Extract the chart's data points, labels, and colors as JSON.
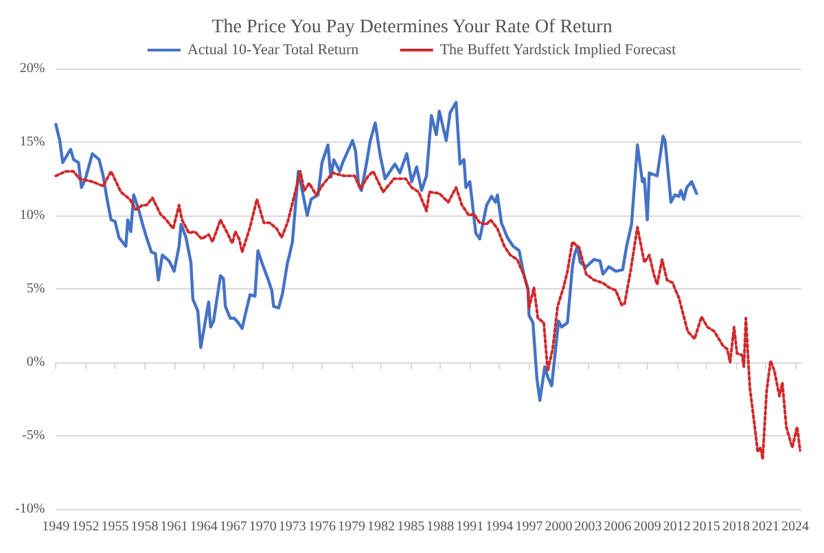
{
  "chart_data": {
    "type": "line",
    "title": "The Price You Pay Determines Your Rate Of Return",
    "series": [
      {
        "name": "Actual 10-Year Total Return",
        "color": "#4472c4",
        "line_style": "solid",
        "x": [
          1949.0,
          1949.4,
          1949.7,
          1950.5,
          1950.8,
          1951.3,
          1951.6,
          1952.0,
          1952.7,
          1953.4,
          1953.8,
          1954.2,
          1954.6,
          1955.0,
          1955.4,
          1956.1,
          1956.3,
          1956.6,
          1956.9,
          1957.4,
          1957.8,
          1958.2,
          1958.7,
          1959.1,
          1959.4,
          1959.8,
          1960.5,
          1961.0,
          1961.5,
          1961.7,
          1962.2,
          1962.7,
          1962.9,
          1963.4,
          1963.7,
          1964.5,
          1964.7,
          1965.0,
          1965.7,
          1966.0,
          1966.2,
          1966.7,
          1967.1,
          1967.5,
          1967.9,
          1968.2,
          1968.7,
          1969.2,
          1969.5,
          1970.0,
          1970.5,
          1970.9,
          1971.1,
          1971.6,
          1972.0,
          1972.5,
          1972.7,
          1973.0,
          1973.6,
          1974.5,
          1974.9,
          1975.6,
          1976.0,
          1976.6,
          1976.9,
          1977.2,
          1977.8,
          1978.1,
          1978.7,
          1979.1,
          1979.4,
          1979.7,
          1980.0,
          1980.5,
          1980.9,
          1981.4,
          1981.9,
          1982.4,
          1982.9,
          1983.4,
          1983.9,
          1984.6,
          1985.1,
          1985.6,
          1986.1,
          1986.6,
          1987.1,
          1987.6,
          1987.9,
          1988.6,
          1989.0,
          1989.6,
          1990.0,
          1990.4,
          1990.6,
          1991.0,
          1991.6,
          1992.0,
          1992.7,
          1993.2,
          1993.6,
          1993.8,
          1994.2,
          1994.8,
          1995.4,
          1996.0,
          1996.5,
          1996.9,
          1997.0,
          1997.4,
          1997.8,
          1998.1,
          1998.6,
          1998.9,
          1999.3,
          2000.0,
          2000.3,
          2000.9,
          2001.4,
          2001.6,
          2001.9,
          2002.2,
          2002.8,
          2003.6,
          2004.2,
          2004.5,
          2005.1,
          2005.8,
          2006.5,
          2006.9,
          2007.4,
          2008.0,
          2008.5,
          2008.7,
          2009.0,
          2009.2,
          2010.0,
          2010.6,
          2010.8,
          2011.4,
          2011.8,
          2012.2,
          2012.4,
          2012.7,
          2013.0,
          2013.5,
          2014.0
        ],
        "values": [
          16.2,
          15.1,
          13.6,
          14.5,
          13.8,
          13.6,
          11.9,
          12.5,
          14.2,
          13.8,
          12.7,
          11.1,
          9.7,
          9.6,
          8.5,
          7.9,
          9.7,
          8.9,
          11.4,
          10.4,
          9.4,
          8.5,
          7.5,
          7.4,
          5.6,
          7.3,
          6.9,
          6.2,
          7.9,
          9.4,
          8.5,
          6.8,
          4.3,
          3.5,
          1.0,
          4.1,
          2.4,
          2.8,
          5.9,
          5.7,
          3.8,
          3.0,
          3.0,
          2.7,
          2.3,
          3.2,
          4.6,
          4.5,
          7.6,
          6.6,
          5.7,
          4.9,
          3.8,
          3.7,
          4.7,
          6.8,
          7.3,
          8.2,
          13.0,
          10.0,
          11.1,
          11.4,
          13.6,
          14.8,
          12.6,
          13.8,
          13.0,
          13.6,
          14.5,
          15.1,
          14.4,
          12.2,
          11.7,
          13.5,
          15.1,
          16.3,
          14.1,
          12.5,
          13.0,
          13.5,
          12.9,
          14.2,
          12.3,
          13.3,
          11.7,
          12.7,
          16.8,
          15.5,
          17.1,
          15.1,
          17.0,
          17.7,
          13.5,
          13.8,
          11.9,
          12.3,
          8.8,
          8.4,
          10.7,
          11.3,
          10.9,
          11.4,
          9.5,
          8.5,
          7.9,
          7.6,
          5.9,
          5.0,
          3.2,
          2.7,
          -1.1,
          -2.6,
          -0.3,
          -1.0,
          -1.6,
          2.8,
          2.4,
          2.7,
          6.5,
          7.3,
          7.9,
          6.8,
          6.5,
          7.0,
          6.9,
          6.0,
          6.5,
          6.2,
          6.3,
          7.9,
          9.4,
          14.8,
          12.3,
          12.5,
          9.7,
          12.9,
          12.7,
          15.4,
          15.1,
          10.9,
          11.4,
          11.3,
          11.7,
          11.1,
          11.9,
          12.3,
          11.5
        ]
      },
      {
        "name": "The Buffett Yardstick Implied Forecast",
        "color": "#d0282b",
        "line_style": "dotted",
        "x": [
          1949.0,
          1950.0,
          1950.8,
          1951.4,
          1952.7,
          1953.8,
          1954.6,
          1955.6,
          1956.5,
          1957.1,
          1957.8,
          1958.2,
          1958.8,
          1959.6,
          1960.2,
          1960.9,
          1961.5,
          1961.8,
          1962.5,
          1963.1,
          1963.8,
          1964.5,
          1964.9,
          1965.7,
          1966.4,
          1966.9,
          1967.2,
          1967.6,
          1967.9,
          1968.7,
          1969.4,
          1970.1,
          1970.7,
          1971.4,
          1971.9,
          1972.5,
          1973.1,
          1973.8,
          1974.2,
          1974.7,
          1975.4,
          1976.2,
          1977.1,
          1978.2,
          1979.3,
          1979.9,
          1980.7,
          1981.2,
          1982.2,
          1983.3,
          1984.5,
          1985.1,
          1985.8,
          1986.6,
          1986.9,
          1987.9,
          1988.8,
          1989.6,
          1990.2,
          1990.9,
          1991.4,
          1992.0,
          1992.7,
          1993.1,
          1993.8,
          1994.5,
          1995.1,
          1995.8,
          1996.5,
          1996.9,
          1997.0,
          1997.5,
          1997.9,
          1998.5,
          1998.9,
          1999.4,
          1999.9,
          2000.5,
          2000.9,
          2001.4,
          2002.1,
          2002.8,
          2003.6,
          2004.5,
          2005.1,
          2005.8,
          2006.4,
          2006.7,
          2007.3,
          2008.0,
          2008.7,
          2009.2,
          2009.7,
          2010.0,
          2010.5,
          2011.0,
          2011.6,
          2011.8,
          2012.2,
          2013.1,
          2013.8,
          2014.5,
          2015.1,
          2015.8,
          2016.7,
          2017.1,
          2017.4,
          2017.8,
          2018.1,
          2018.6,
          2018.8,
          2019.0,
          2019.4,
          2019.9,
          2020.2,
          2020.5,
          2020.7,
          2021.1,
          2021.5,
          2021.9,
          2022.4,
          2022.7,
          2023.1,
          2023.7,
          2024.2,
          2024.5
        ],
        "values": [
          12.7,
          13.0,
          13.0,
          12.5,
          12.3,
          12.0,
          13.0,
          11.6,
          11.1,
          10.4,
          10.7,
          10.7,
          11.2,
          10.1,
          9.7,
          9.1,
          10.7,
          9.7,
          8.8,
          8.9,
          8.4,
          8.7,
          8.2,
          9.7,
          8.8,
          8.1,
          8.9,
          8.4,
          7.5,
          9.2,
          11.1,
          9.5,
          9.5,
          9.1,
          8.5,
          9.5,
          11.1,
          13.0,
          11.7,
          12.2,
          11.4,
          12.2,
          12.9,
          12.7,
          12.7,
          11.8,
          12.7,
          13.0,
          11.6,
          12.5,
          12.5,
          11.9,
          11.6,
          10.3,
          11.6,
          11.5,
          10.9,
          11.9,
          10.7,
          10.0,
          10.1,
          9.5,
          9.4,
          9.7,
          9.1,
          7.9,
          7.3,
          7.0,
          5.9,
          4.9,
          3.7,
          5.1,
          3.0,
          2.7,
          -0.6,
          0.9,
          3.8,
          5.1,
          6.2,
          8.2,
          7.8,
          6.0,
          5.6,
          5.4,
          5.1,
          4.9,
          3.9,
          4.0,
          6.2,
          9.2,
          6.8,
          7.3,
          5.9,
          5.3,
          7.0,
          5.6,
          5.4,
          5.0,
          4.4,
          2.1,
          1.6,
          3.1,
          2.4,
          2.1,
          1.1,
          0.9,
          0.0,
          2.4,
          0.6,
          0.5,
          -0.3,
          3.0,
          -1.7,
          -4.4,
          -6.1,
          -5.8,
          -6.6,
          -2.0,
          0.1,
          -0.6,
          -2.3,
          -1.4,
          -4.4,
          -5.8,
          -4.4,
          -6.0
        ]
      }
    ],
    "xlim": [
      1949,
      2024.6
    ],
    "xticks": [
      1949,
      1952,
      1955,
      1958,
      1961,
      1964,
      1967,
      1970,
      1973,
      1976,
      1979,
      1982,
      1985,
      1988,
      1991,
      1994,
      1997,
      2000,
      2003,
      2006,
      2009,
      2012,
      2015,
      2018,
      2021,
      2024
    ],
    "ylim": [
      -10,
      20
    ],
    "yticks": [
      {
        "value": -10,
        "label": "-10%"
      },
      {
        "value": -5,
        "label": "-5%"
      },
      {
        "value": 0,
        "label": "0%"
      },
      {
        "value": 5,
        "label": "5%"
      },
      {
        "value": 10,
        "label": "10%"
      },
      {
        "value": 15,
        "label": "15%"
      },
      {
        "value": 20,
        "label": "20%"
      }
    ],
    "grid": "y",
    "legend": "top",
    "marker": "none"
  }
}
